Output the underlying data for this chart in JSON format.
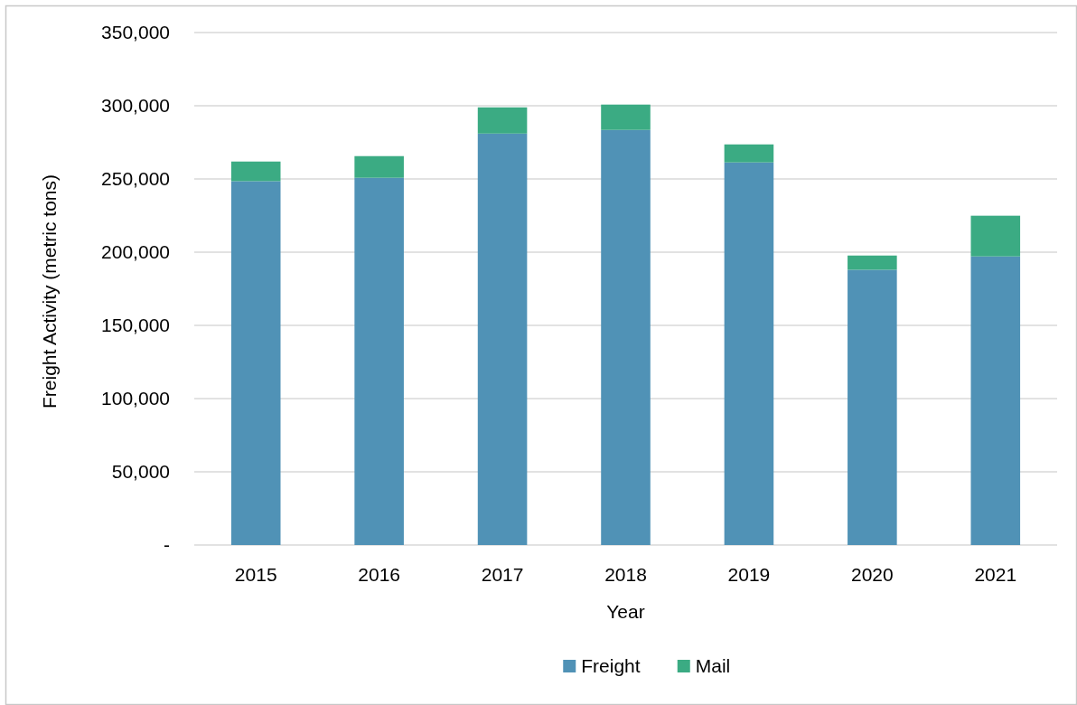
{
  "chart_data": {
    "type": "bar",
    "stacked": true,
    "categories": [
      "2015",
      "2016",
      "2017",
      "2018",
      "2019",
      "2020",
      "2021"
    ],
    "series": [
      {
        "name": "Freight",
        "color": "#5092b6",
        "values": [
          248500,
          250800,
          281000,
          283500,
          261300,
          188000,
          197100
        ]
      },
      {
        "name": "Mail",
        "color": "#3bab83",
        "values": [
          13400,
          14800,
          17900,
          17300,
          12300,
          9700,
          27800
        ]
      }
    ],
    "xlabel": "Year",
    "ylabel": "Freight Activity (metric tons)",
    "ylim": [
      0,
      350000
    ],
    "yticks": [
      {
        "value": 0,
        "label": "-"
      },
      {
        "value": 50000,
        "label": "50,000"
      },
      {
        "value": 100000,
        "label": "100,000"
      },
      {
        "value": 150000,
        "label": "150,000"
      },
      {
        "value": 200000,
        "label": "200,000"
      },
      {
        "value": 250000,
        "label": "250,000"
      },
      {
        "value": 300000,
        "label": "300,000"
      },
      {
        "value": 350000,
        "label": "350,000"
      }
    ],
    "grid": "y",
    "legend": "bottom"
  }
}
